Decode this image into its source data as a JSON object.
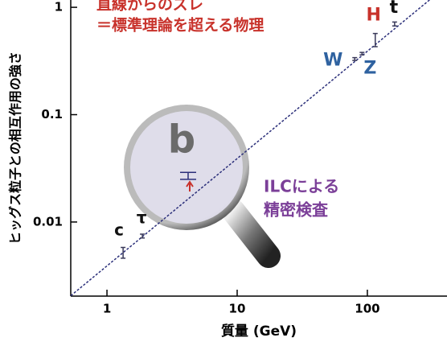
{
  "chart_data": {
    "type": "scatter",
    "x_label": "質量 (GeV)",
    "y_label": "ヒッグス粒子との相互作用の強さ",
    "xlog": true,
    "ylog": true,
    "xlim": [
      0.527,
      409
    ],
    "ylim": [
      0.00204,
      1.17
    ],
    "xticks": [
      1,
      10,
      100
    ],
    "yticks": [
      1,
      0.1,
      0.01
    ],
    "series": [
      {
        "x": [
          1.33,
          1.87,
          4.2,
          80,
          91,
          115,
          162
        ],
        "values": [
          0.0052,
          0.0074,
          0.027,
          0.33,
          0.37,
          0.5,
          0.7
        ],
        "errors": [
          0.0006,
          0.0003,
          0.002,
          0.01,
          0.01,
          0.07,
          0.03
        ],
        "labels": [
          "c",
          "τ",
          "b",
          "W",
          "Z",
          "H",
          "t"
        ],
        "label_colors": [
          "#111111",
          "#111111",
          "#6b6b6b",
          "#2f62a0",
          "#2f62a0",
          "#c8322b",
          "#111111"
        ],
        "color": "#3a3a5a"
      }
    ],
    "fit_line": {
      "x": [
        0.5,
        400
      ],
      "values": [
        0.00195,
        1.56
      ],
      "color": "#2b2f7a"
    },
    "annotations": [
      {
        "text": "直線からのズレ",
        "color": "#c8322b"
      },
      {
        "text": "＝標準理論を超える物理",
        "color": "#c8322b"
      },
      {
        "text": "ILCによる",
        "color": "#7b3f98"
      },
      {
        "text": "精密検査",
        "color": "#7b3f98"
      }
    ]
  }
}
